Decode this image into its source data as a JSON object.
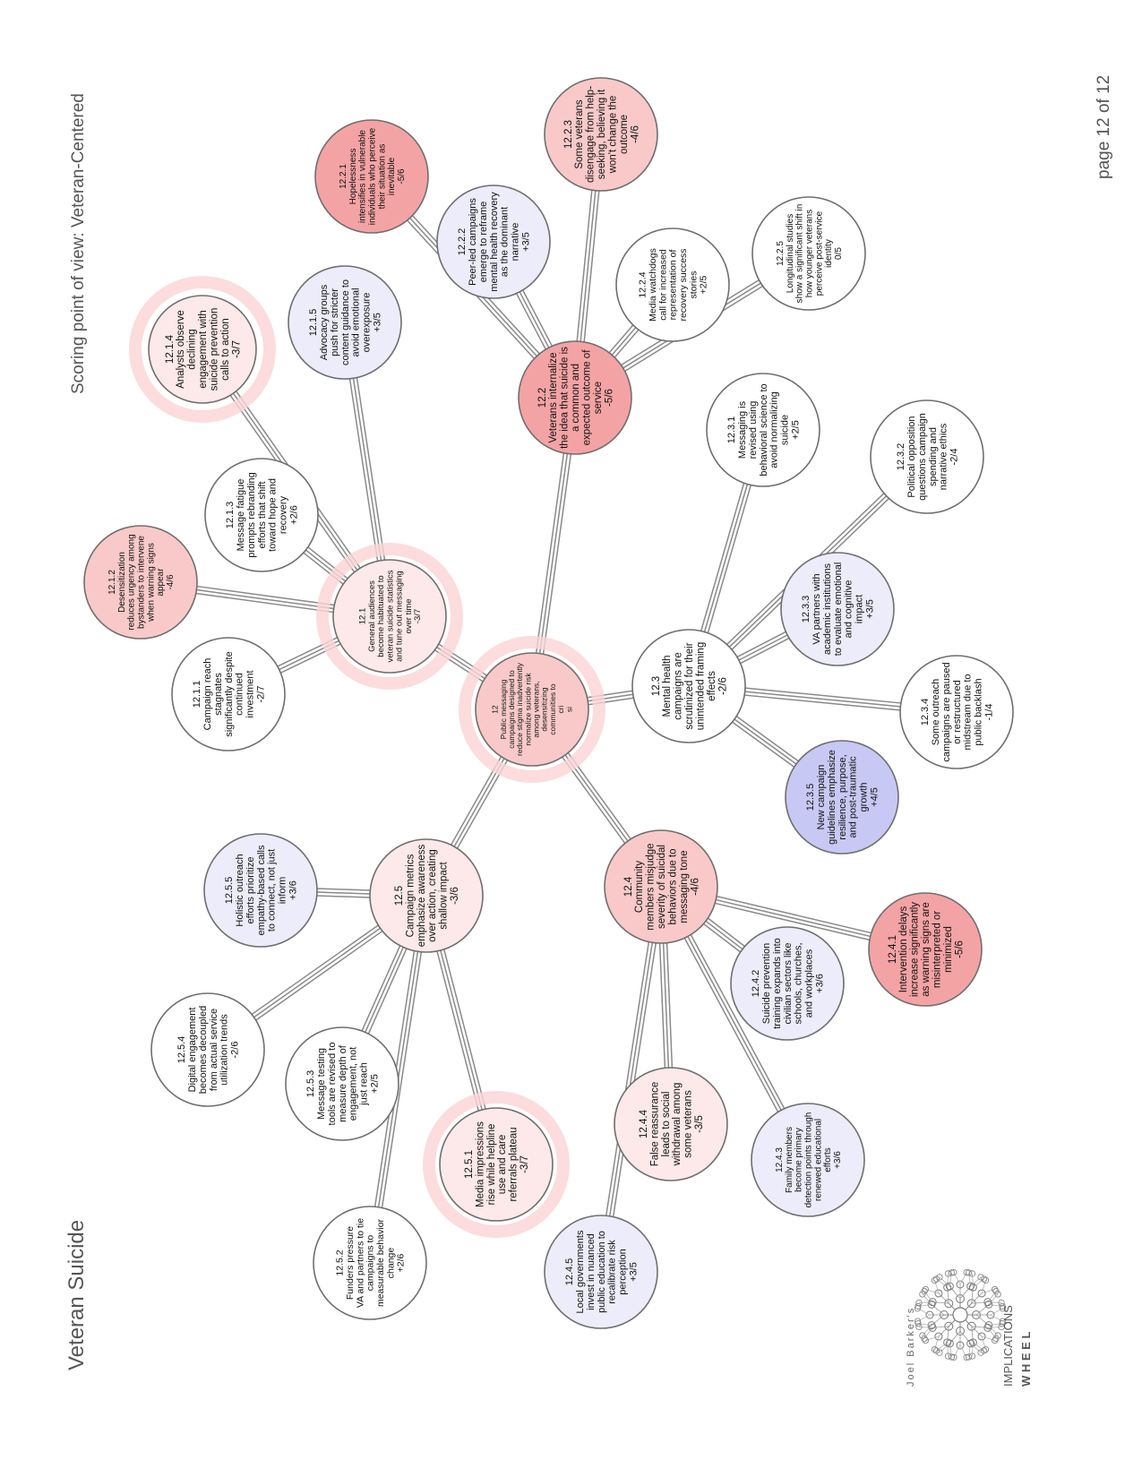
{
  "header": {
    "title": "Veteran Suicide",
    "scoring": "Scoring point of view: Veteran-Centered",
    "page": "page 12 of 12"
  },
  "logo": {
    "byline": "Joel Barker's",
    "line1": "IMPLICATIONS",
    "line2": "W H E E L"
  },
  "colors": {
    "neg_strong": "#f4a3a5",
    "neg_mid": "#f9c9c9",
    "neg_light": "#fde9e9",
    "neutral": "#ffffff",
    "pos_light": "#ececfb",
    "pos_strong": "#c8c8f4",
    "halo": "#fbd3d3",
    "stroke": "#6f6f6f"
  },
  "nodes": [
    {
      "id": "12",
      "lines": [
        "12",
        "Public messaging",
        "campaigns designed to",
        "reduce stigma inadvertently",
        "normalize suicide risk",
        "among veterans,",
        "desensitizing",
        "communities to",
        "cri",
        "si"
      ],
      "tone": "neg_mid",
      "halo": true
    },
    {
      "id": "12.1",
      "lines": [
        "12.1",
        "General audiences",
        "become habituated to",
        "veteran suicide statistics",
        "and tune out messaging",
        "over time",
        "-3/7"
      ],
      "tone": "neg_light",
      "halo": true
    },
    {
      "id": "12.2",
      "lines": [
        "12.2",
        "Veterans internalize",
        "the idea that suicide is",
        "a common and",
        "expected outcome of",
        "service",
        "-5/6"
      ],
      "tone": "neg_strong",
      "halo": false
    },
    {
      "id": "12.3",
      "lines": [
        "12.3",
        "Mental health",
        "campaigns are",
        "scrutinized for their",
        "unintended framing",
        "effects",
        "-2/6"
      ],
      "tone": "neutral",
      "halo": false
    },
    {
      "id": "12.4",
      "lines": [
        "12.4",
        "Community",
        "members misjudge",
        "severity of suicidal",
        "behaviors due to",
        "messaging tone",
        "-4/6"
      ],
      "tone": "neg_mid",
      "halo": false
    },
    {
      "id": "12.5",
      "lines": [
        "12.5",
        "Campaign metrics",
        "emphasize awareness",
        "over action, creating",
        "shallow impact",
        "-3/6"
      ],
      "tone": "neg_light",
      "halo": false
    },
    {
      "id": "12.1.1",
      "lines": [
        "12.1.1",
        "Campaign reach",
        "stagnates",
        "significantly despite",
        "continued",
        "investment",
        "-2/7"
      ],
      "tone": "neutral",
      "halo": false
    },
    {
      "id": "12.1.2",
      "lines": [
        "12.1.2",
        "Desensitization",
        "reduces urgency among",
        "bystanders to intervene",
        "when warning signs",
        "appear",
        "-4/6"
      ],
      "tone": "neg_mid",
      "halo": false
    },
    {
      "id": "12.1.3",
      "lines": [
        "12.1.3",
        "Message fatigue",
        "prompts rebranding",
        "efforts that shift",
        "toward hope and",
        "recovery",
        "+2/6"
      ],
      "tone": "neutral",
      "halo": false
    },
    {
      "id": "12.1.4",
      "lines": [
        "12.1.4",
        "Analysts observe",
        "declining",
        "engagement with",
        "suicide prevention",
        "calls to action",
        "-3/7"
      ],
      "tone": "neg_light",
      "halo": true
    },
    {
      "id": "12.1.5",
      "lines": [
        "12.1.5",
        "Advocacy groups",
        "push for stricter",
        "content guidance to",
        "avoid emotional",
        "overexposure",
        "+3/5"
      ],
      "tone": "pos_light",
      "halo": false
    },
    {
      "id": "12.2.1",
      "lines": [
        "12.2.1",
        "Hopelessness",
        "intensifies in vulnerable",
        "individuals who perceive",
        "their situation as",
        "inevitable",
        "-5/6"
      ],
      "tone": "neg_strong",
      "halo": false
    },
    {
      "id": "12.2.2",
      "lines": [
        "12.2.2",
        "Peer-led campaigns",
        "emerge to reframe",
        "mental health recovery",
        "as the dominant",
        "narrative",
        "+3/5"
      ],
      "tone": "pos_light",
      "halo": false
    },
    {
      "id": "12.2.3",
      "lines": [
        "12.2.3",
        "Some veterans",
        "disengage from help-",
        "seeking, believing it",
        "won't change the",
        "outcome",
        "-4/6"
      ],
      "tone": "neg_mid",
      "halo": false
    },
    {
      "id": "12.2.4",
      "lines": [
        "12.2.4",
        "Media watchdogs",
        "call for increased",
        "representation of",
        "recovery success",
        "stories",
        "+2/5"
      ],
      "tone": "neutral",
      "halo": false
    },
    {
      "id": "12.2.5",
      "lines": [
        "12.2.5",
        "Longitudinal studies",
        "show a significant shift in",
        "how younger veterans",
        "perceive post-service",
        "identity",
        "0/5"
      ],
      "tone": "neutral",
      "halo": false
    },
    {
      "id": "12.3.1",
      "lines": [
        "12.3.1",
        "Messaging is",
        "revised using",
        "behavioral science to",
        "avoid normalizing",
        "suicide",
        "+2/5"
      ],
      "tone": "neutral",
      "halo": false
    },
    {
      "id": "12.3.2",
      "lines": [
        "12.3.2",
        "Political opposition",
        "questions campaign",
        "spending and",
        "narrative ethics",
        "-2/4"
      ],
      "tone": "neutral",
      "halo": false
    },
    {
      "id": "12.3.3",
      "lines": [
        "12.3.3",
        "VA partners with",
        "academic institutions",
        "to evaluate emotional",
        "and cognitive",
        "impact",
        "+3/5"
      ],
      "tone": "pos_light",
      "halo": false
    },
    {
      "id": "12.3.4",
      "lines": [
        "12.3.4",
        "Some outreach",
        "campaigns are paused",
        "or restructured",
        "midstream due to",
        "public backlash",
        "-1/4"
      ],
      "tone": "neutral",
      "halo": false
    },
    {
      "id": "12.3.5",
      "lines": [
        "12.3.5",
        "New campaign",
        "guidelines emphasize",
        "resilience, purpose,",
        "and post-traumatic",
        "growth",
        "+4/5"
      ],
      "tone": "pos_strong",
      "halo": false
    },
    {
      "id": "12.4.1",
      "lines": [
        "12.4.1",
        "Intervention delays",
        "increase significantly",
        "as warning signs are",
        "misinterpreted or",
        "minimized",
        "-5/6"
      ],
      "tone": "neg_strong",
      "halo": false
    },
    {
      "id": "12.4.2",
      "lines": [
        "12.4.2",
        "Suicide prevention",
        "training expands into",
        "civilian sectors like",
        "schools, churches,",
        "and workplaces",
        "+3/6"
      ],
      "tone": "pos_light",
      "halo": false
    },
    {
      "id": "12.4.3",
      "lines": [
        "12.4.3",
        "Family members",
        "become primary",
        "detection points through",
        "renewed educational",
        "efforts",
        "+3/6"
      ],
      "tone": "pos_light",
      "halo": false
    },
    {
      "id": "12.4.4",
      "lines": [
        "12.4.4",
        "False reassurance",
        "leads to social",
        "withdrawal among",
        "some veterans",
        "-3/5"
      ],
      "tone": "neg_light",
      "halo": false
    },
    {
      "id": "12.4.5",
      "lines": [
        "12.4.5",
        "Local governments",
        "invest in nuanced",
        "public education to",
        "recalibrate risk",
        "perception",
        "+3/5"
      ],
      "tone": "pos_light",
      "halo": false
    },
    {
      "id": "12.5.1",
      "lines": [
        "12.5.1",
        "Media impressions",
        "rise while helpline",
        "use and care",
        "referrals plateau",
        "-3/7"
      ],
      "tone": "neg_light",
      "halo": true
    },
    {
      "id": "12.5.2",
      "lines": [
        "12.5.2",
        "Funders pressure",
        "VA and partners to tie",
        "campaigns to",
        "measurable behavior",
        "change",
        "+2/6"
      ],
      "tone": "neutral",
      "halo": false
    },
    {
      "id": "12.5.3",
      "lines": [
        "12.5.3",
        "Message testing",
        "tools are revised to",
        "measure depth of",
        "engagement, not",
        "just reach",
        "+2/5"
      ],
      "tone": "neutral",
      "halo": false
    },
    {
      "id": "12.5.4",
      "lines": [
        "12.5.4",
        "Digital engagement",
        "becomes decoupled",
        "from actual service",
        "utilization trends",
        "-2/6"
      ],
      "tone": "neutral",
      "halo": false
    },
    {
      "id": "12.5.5",
      "lines": [
        "12.5.5",
        "Holistic outreach",
        "efforts prioritize",
        "empathy-based calls",
        "to connect, not just",
        "inform",
        "+3/6"
      ],
      "tone": "pos_light",
      "halo": false
    }
  ],
  "links": [
    [
      "12",
      "12.1"
    ],
    [
      "12",
      "12.2"
    ],
    [
      "12",
      "12.3"
    ],
    [
      "12",
      "12.4"
    ],
    [
      "12",
      "12.5"
    ],
    [
      "12.1",
      "12.1.1"
    ],
    [
      "12.1",
      "12.1.2"
    ],
    [
      "12.1",
      "12.1.3"
    ],
    [
      "12.1",
      "12.1.4"
    ],
    [
      "12.1",
      "12.1.5"
    ],
    [
      "12.2",
      "12.2.1"
    ],
    [
      "12.2",
      "12.2.2"
    ],
    [
      "12.2",
      "12.2.3"
    ],
    [
      "12.2",
      "12.2.4"
    ],
    [
      "12.2",
      "12.2.5"
    ],
    [
      "12.3",
      "12.3.1"
    ],
    [
      "12.3",
      "12.3.2"
    ],
    [
      "12.3",
      "12.3.3"
    ],
    [
      "12.3",
      "12.3.4"
    ],
    [
      "12.3",
      "12.3.5"
    ],
    [
      "12.4",
      "12.4.1"
    ],
    [
      "12.4",
      "12.4.2"
    ],
    [
      "12.4",
      "12.4.3"
    ],
    [
      "12.4",
      "12.4.4"
    ],
    [
      "12.4",
      "12.4.5"
    ],
    [
      "12.5",
      "12.5.1"
    ],
    [
      "12.5",
      "12.5.2"
    ],
    [
      "12.5",
      "12.5.3"
    ],
    [
      "12.5",
      "12.5.4"
    ],
    [
      "12.5",
      "12.5.5"
    ]
  ]
}
